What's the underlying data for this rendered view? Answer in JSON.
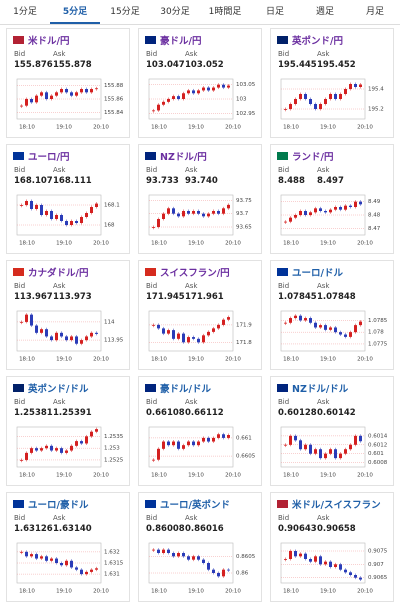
{
  "tabs": [
    "1分足",
    "5分足",
    "15分足",
    "30分足",
    "1時間足",
    "日足",
    "週足",
    "月足"
  ],
  "selected_tab": 1,
  "labels": {
    "bid": "Bid",
    "ask": "Ask"
  },
  "xlabels": [
    "18:10",
    "19:10",
    "20:10"
  ],
  "cards": [
    {
      "name": "米ドル/円",
      "color": "#6b2fa0",
      "flag": "#b22234",
      "bid": "155.876",
      "ask": "155.878",
      "ylim": [
        155.83,
        155.89
      ],
      "yticks": [
        155.88,
        155.86,
        155.84
      ],
      "prices": [
        155.85,
        155.86,
        155.855,
        155.865,
        155.87,
        155.86,
        155.865,
        155.87,
        155.875,
        155.87,
        155.865,
        155.87,
        155.875,
        155.87,
        155.875,
        155.876
      ]
    },
    {
      "name": "豪ドル/円",
      "color": "#6b2fa0",
      "flag": "#00247d",
      "bid": "103.047",
      "ask": "103.052",
      "ylim": [
        102.93,
        103.07
      ],
      "yticks": [
        103.05,
        103,
        102.95
      ],
      "prices": [
        102.96,
        102.98,
        102.99,
        103.0,
        103.01,
        103.0,
        103.02,
        103.03,
        103.02,
        103.03,
        103.04,
        103.03,
        103.04,
        103.05,
        103.04,
        103.047
      ]
    },
    {
      "name": "英ポンド/円",
      "color": "#6b2fa0",
      "flag": "#012169",
      "bid": "195.445",
      "ask": "195.452",
      "ylim": [
        195.1,
        195.5
      ],
      "yticks": [
        195.4,
        195.2
      ],
      "prices": [
        195.2,
        195.25,
        195.3,
        195.35,
        195.3,
        195.25,
        195.2,
        195.25,
        195.3,
        195.35,
        195.3,
        195.35,
        195.4,
        195.45,
        195.42,
        195.445
      ]
    },
    {
      "name": "ユーロ/円",
      "color": "#6b2fa0",
      "flag": "#003399",
      "bid": "168.107",
      "ask": "168.111",
      "ylim": [
        167.95,
        168.15
      ],
      "yticks": [
        168.1,
        168
      ],
      "prices": [
        168.1,
        168.12,
        168.08,
        168.1,
        168.05,
        168.07,
        168.03,
        168.05,
        168.02,
        168.0,
        168.02,
        168.01,
        168.04,
        168.06,
        168.09,
        168.107
      ]
    },
    {
      "name": "NZドル/円",
      "color": "#6b2fa0",
      "flag": "#00247d",
      "bid": "93.733",
      "ask": "93.740",
      "ylim": [
        93.62,
        93.77
      ],
      "yticks": [
        93.75,
        93.7,
        93.65
      ],
      "prices": [
        93.65,
        93.68,
        93.7,
        93.72,
        93.7,
        93.69,
        93.71,
        93.7,
        93.71,
        93.7,
        93.69,
        93.7,
        93.71,
        93.7,
        93.72,
        93.733
      ]
    },
    {
      "name": "ランド/円",
      "color": "#6b2fa0",
      "flag": "#007a4d",
      "bid": "8.488",
      "ask": "8.497",
      "ylim": [
        8.465,
        8.495
      ],
      "yticks": [
        8.49,
        8.48,
        8.47
      ],
      "prices": [
        8.475,
        8.478,
        8.48,
        8.483,
        8.48,
        8.482,
        8.485,
        8.483,
        8.482,
        8.484,
        8.486,
        8.484,
        8.487,
        8.486,
        8.49,
        8.488
      ]
    },
    {
      "name": "カナダドル/円",
      "color": "#6b2fa0",
      "flag": "#d52b1e",
      "bid": "113.967",
      "ask": "113.973",
      "ylim": [
        113.92,
        114.03
      ],
      "yticks": [
        114,
        113.95
      ],
      "prices": [
        114.0,
        114.02,
        113.99,
        113.97,
        113.98,
        113.96,
        113.95,
        113.97,
        113.96,
        113.95,
        113.96,
        113.94,
        113.95,
        113.96,
        113.97,
        113.967
      ]
    },
    {
      "name": "スイスフラン/円",
      "color": "#6b2fa0",
      "flag": "#d52b1e",
      "bid": "171.945",
      "ask": "171.961",
      "ylim": [
        171.75,
        171.98
      ],
      "yticks": [
        171.9,
        171.8
      ],
      "prices": [
        171.9,
        171.88,
        171.85,
        171.87,
        171.82,
        171.85,
        171.8,
        171.83,
        171.82,
        171.8,
        171.84,
        171.86,
        171.88,
        171.9,
        171.93,
        171.945
      ]
    },
    {
      "name": "ユーロ/ドル",
      "color": "#1f5fa8",
      "flag": "#003399",
      "bid": "1.07845",
      "ask": "1.07848",
      "ylim": [
        1.0772,
        1.0789
      ],
      "yticks": [
        1.0785,
        1.078,
        1.0775
      ],
      "prices": [
        1.0784,
        1.0786,
        1.0787,
        1.0785,
        1.0786,
        1.0784,
        1.0782,
        1.0783,
        1.0781,
        1.0782,
        1.078,
        1.0779,
        1.0778,
        1.078,
        1.0783,
        1.07845
      ]
    },
    {
      "name": "英ポンド/ドル",
      "color": "#1f5fa8",
      "flag": "#012169",
      "bid": "1.25381",
      "ask": "1.25391",
      "ylim": [
        1.2522,
        1.2539
      ],
      "yticks": [
        1.2535,
        1.253,
        1.2525
      ],
      "prices": [
        1.2525,
        1.2528,
        1.253,
        1.2529,
        1.253,
        1.2531,
        1.2529,
        1.253,
        1.2528,
        1.2529,
        1.2531,
        1.2533,
        1.2532,
        1.2535,
        1.2537,
        1.25381
      ]
    },
    {
      "name": "豪ドル/ドル",
      "color": "#1f5fa8",
      "flag": "#00247d",
      "bid": "0.66108",
      "ask": "0.66112",
      "ylim": [
        0.6602,
        0.6613
      ],
      "yticks": [
        0.661,
        0.6605
      ],
      "prices": [
        0.6604,
        0.6607,
        0.6609,
        0.6608,
        0.6609,
        0.6607,
        0.6608,
        0.6609,
        0.6608,
        0.6609,
        0.661,
        0.6609,
        0.661,
        0.6611,
        0.661,
        0.66108
      ]
    },
    {
      "name": "NZドル/ドル",
      "color": "#1f5fa8",
      "flag": "#00247d",
      "bid": "0.60128",
      "ask": "0.60142",
      "ylim": [
        0.6007,
        0.6016
      ],
      "yticks": [
        0.6014,
        0.6012,
        0.601,
        0.6008
      ],
      "prices": [
        0.6012,
        0.6014,
        0.6013,
        0.6011,
        0.6012,
        0.601,
        0.6011,
        0.6009,
        0.601,
        0.6011,
        0.6009,
        0.601,
        0.6011,
        0.6012,
        0.6014,
        0.60128
      ]
    },
    {
      "name": "ユーロ/豪ドル",
      "color": "#1f5fa8",
      "flag": "#003399",
      "bid": "1.63126",
      "ask": "1.63140",
      "ylim": [
        1.6306,
        1.6324
      ],
      "yticks": [
        1.632,
        1.6315,
        1.631
      ],
      "prices": [
        1.632,
        1.6318,
        1.6319,
        1.6317,
        1.6318,
        1.6316,
        1.6317,
        1.6315,
        1.6314,
        1.6316,
        1.6313,
        1.6312,
        1.631,
        1.6311,
        1.6312,
        1.63126
      ]
    },
    {
      "name": "ユーロ/英ポンド",
      "color": "#1f5fa8",
      "flag": "#003399",
      "bid": "0.86008",
      "ask": "0.86016",
      "ylim": [
        0.8597,
        0.8609
      ],
      "yticks": [
        0.8605,
        0.86
      ],
      "prices": [
        0.8607,
        0.8606,
        0.8607,
        0.8606,
        0.8605,
        0.8606,
        0.8605,
        0.8604,
        0.8605,
        0.8604,
        0.8603,
        0.8601,
        0.86,
        0.8599,
        0.8601,
        0.86008
      ]
    },
    {
      "name": "米ドル/スイスフラン",
      "color": "#1f5fa8",
      "flag": "#b22234",
      "bid": "0.90643",
      "ask": "0.90658",
      "ylim": [
        0.9063,
        0.9078
      ],
      "yticks": [
        0.9075,
        0.907,
        0.9065
      ],
      "prices": [
        0.9072,
        0.9075,
        0.9073,
        0.9074,
        0.9072,
        0.9071,
        0.9073,
        0.907,
        0.9071,
        0.9069,
        0.907,
        0.9068,
        0.9067,
        0.9066,
        0.9065,
        0.90643
      ]
    }
  ]
}
